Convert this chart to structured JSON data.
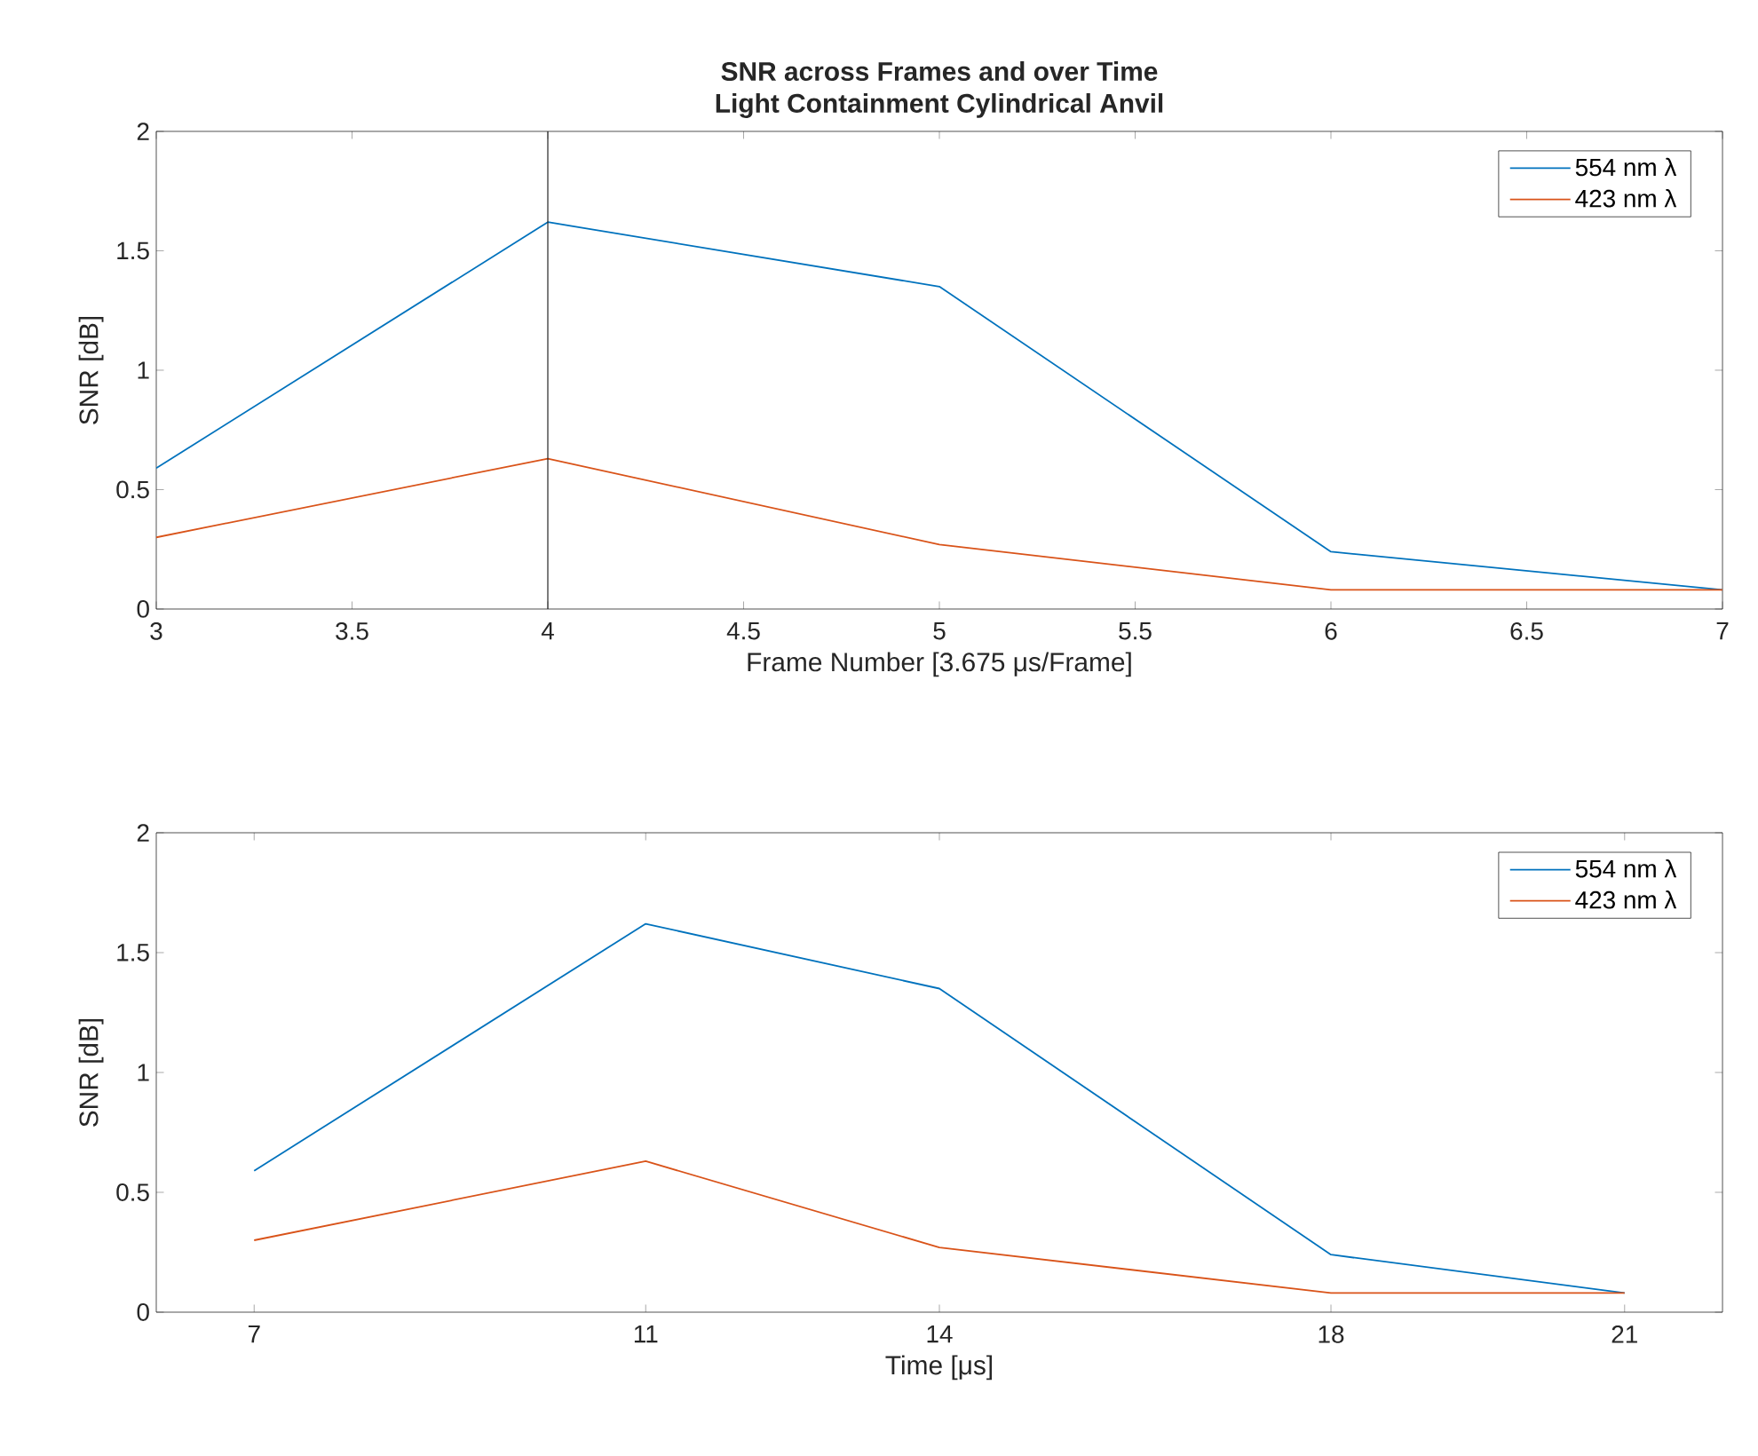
{
  "chart_data": [
    {
      "type": "line",
      "title": "SNR across Frames and over Time",
      "subtitle": "Light Containment Cylindrical Anvil",
      "xlabel": "Frame Number [3.675 μs/Frame]",
      "ylabel": "SNR [dB]",
      "x": [
        3,
        4,
        5,
        6,
        7
      ],
      "xlim": [
        3,
        7
      ],
      "xticks": [
        3,
        3.5,
        4,
        4.5,
        5,
        5.5,
        6,
        6.5,
        7
      ],
      "ylim": [
        0,
        2
      ],
      "yticks": [
        0,
        0.5,
        1,
        1.5,
        2
      ],
      "legend": "top right",
      "ref_lines": [
        {
          "axis": "x",
          "value": 4,
          "color": "#262626"
        }
      ],
      "series": [
        {
          "name": "554 nm λ",
          "color": "#0072bd",
          "values": [
            0.59,
            1.62,
            1.35,
            0.24,
            0.08
          ]
        },
        {
          "name": "423 nm λ",
          "color": "#d95319",
          "values": [
            0.3,
            0.63,
            0.27,
            0.08,
            0.08
          ]
        }
      ]
    },
    {
      "type": "line",
      "xlabel": "Time  [μs]",
      "ylabel": "SNR [dB]",
      "x": [
        7,
        11,
        14,
        18,
        21
      ],
      "xlim": [
        6,
        22
      ],
      "xticks": [
        7,
        11,
        14,
        18,
        21
      ],
      "ylim": [
        0,
        2
      ],
      "yticks": [
        0,
        0.5,
        1,
        1.5,
        2
      ],
      "legend": "top right",
      "series": [
        {
          "name": "554 nm λ",
          "color": "#0072bd",
          "values": [
            0.59,
            1.62,
            1.35,
            0.24,
            0.08
          ]
        },
        {
          "name": "423 nm λ",
          "color": "#d95319",
          "values": [
            0.3,
            0.63,
            0.27,
            0.08,
            0.08
          ]
        }
      ]
    }
  ]
}
